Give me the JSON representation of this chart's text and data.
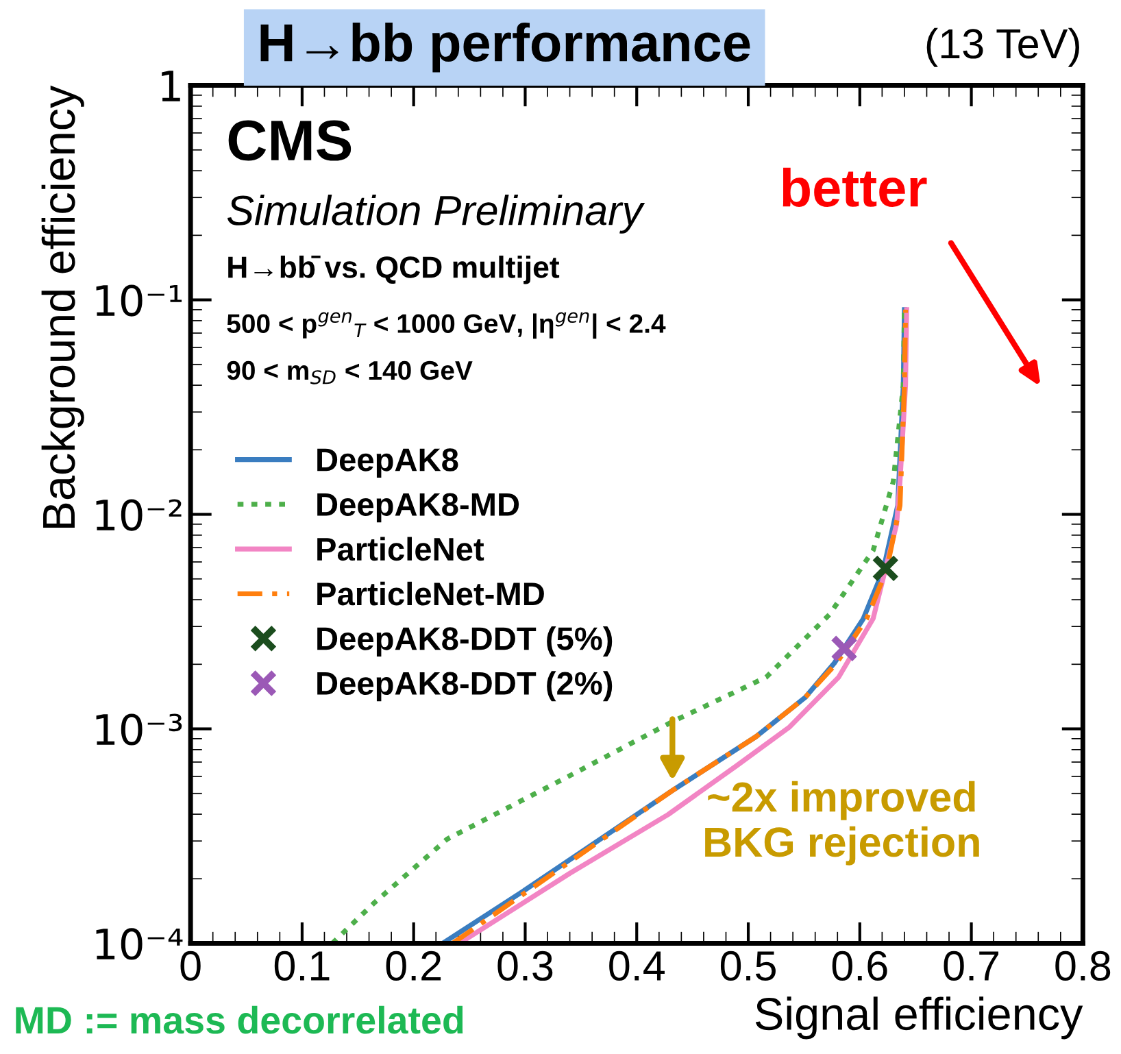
{
  "chart_data": {
    "type": "line",
    "title": "H→bb performance",
    "xlabel": "Signal efficiency",
    "ylabel": "Background efficiency",
    "annotations": [
      "(13 TeV)",
      "CMS",
      "Simulation Preliminary",
      "H→bb̄ vs. QCD multijet",
      "500 < p$^{gen}$$_{T}$ < 1000 GeV, |η$^{gen}$| < 2.4",
      "90 < m$_{SD}$ < 140 GeV",
      "better",
      {
        "text": "~2x improved\nBKG rejection",
        "x": 0.432,
        "y": 0.00055
      },
      "MD := mass decorrelated"
    ],
    "xlim": [
      0,
      0.8
    ],
    "xticks": [
      0,
      0.1,
      0.2,
      0.3,
      0.4,
      0.5,
      0.6,
      0.7,
      0.8
    ],
    "ylim": [
      0.0001,
      1
    ],
    "yticks": [
      {
        "value": 0.0001,
        "label": "10⁻⁴"
      },
      {
        "value": 0.001,
        "label": "10⁻³"
      },
      {
        "value": 0.01,
        "label": "10⁻²"
      },
      {
        "value": 0.1,
        "label": "10⁻¹"
      },
      1
    ],
    "log": true,
    "grid": false,
    "legend": "left",
    "series": [
      {
        "name": "DeepAK8",
        "color": "#3a7dc0",
        "line_style": "solid",
        "x": [
          0.226,
          0.296,
          0.432,
          0.507,
          0.551,
          0.577,
          0.603,
          0.621,
          0.634,
          0.639,
          0.64
        ],
        "values": [
          0.0001,
          0.000172,
          0.000516,
          0.00092,
          0.0014,
          0.00202,
          0.00325,
          0.0055,
          0.011,
          0.04,
          0.09
        ]
      },
      {
        "name": "DeepAK8-MD",
        "color": "#4daf4a",
        "line_style": "dotted",
        "x": [
          0.127,
          0.165,
          0.23,
          0.34,
          0.432,
          0.516,
          0.573,
          0.612,
          0.63,
          0.639,
          0.64
        ],
        "values": [
          0.0001,
          0.000155,
          0.000306,
          0.000605,
          0.00108,
          0.00174,
          0.00342,
          0.0068,
          0.0142,
          0.04,
          0.09
        ]
      },
      {
        "name": "ParticleNet",
        "color": "#f285c4",
        "line_style": "solid",
        "x": [
          0.241,
          0.34,
          0.428,
          0.489,
          0.537,
          0.581,
          0.612,
          0.633,
          0.636,
          0.641,
          0.642
        ],
        "values": [
          0.0001,
          0.000212,
          0.000398,
          0.00067,
          0.00102,
          0.00174,
          0.00327,
          0.009,
          0.0142,
          0.04,
          0.09
        ]
      },
      {
        "name": "ParticleNet-MD",
        "color": "#ff7f0e",
        "line_style": "dashed",
        "x": [
          0.235,
          0.3,
          0.432,
          0.507,
          0.551,
          0.579,
          0.606,
          0.624,
          0.636,
          0.64,
          0.641
        ],
        "values": [
          0.0001,
          0.000172,
          0.000516,
          0.00092,
          0.0014,
          0.00202,
          0.00325,
          0.0055,
          0.011,
          0.04,
          0.09
        ]
      },
      {
        "name": "DeepAK8-DDT (5%)",
        "type": "scatter",
        "marker": "cross",
        "color": "#1b4d1e",
        "x": [
          0.623
        ],
        "values": [
          0.0056
        ]
      },
      {
        "name": "DeepAK8-DDT (2%)",
        "type": "scatter",
        "marker": "cross",
        "color": "#9b59b6",
        "x": [
          0.586
        ],
        "values": [
          0.00237
        ]
      }
    ]
  }
}
